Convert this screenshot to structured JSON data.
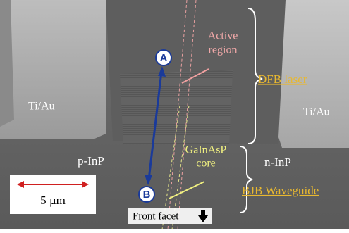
{
  "labels": {
    "active_region": [
      "Active",
      "region"
    ],
    "dfb_laser": "DFB laser",
    "ti_au_left": "Ti/Au",
    "ti_au_right": "Ti/Au",
    "p_inp": "p-InP",
    "n_inp": "n-InP",
    "core": [
      "GaInAsP",
      "core"
    ],
    "bjb_waveguide": "BJB Waveguide",
    "point_a": "A",
    "point_b": "B",
    "scale_bar": "5 µm",
    "front_facet": "Front facet"
  }
}
